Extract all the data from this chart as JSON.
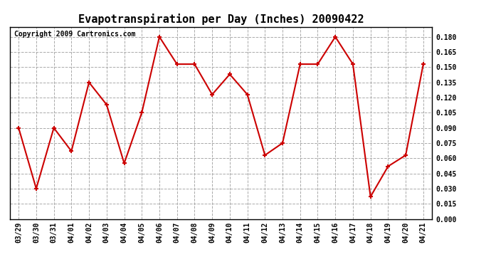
{
  "title": "Evapotranspiration per Day (Inches) 20090422",
  "copyright_text": "Copyright 2009 Cartronics.com",
  "dates": [
    "03/29",
    "03/30",
    "03/31",
    "04/01",
    "04/02",
    "04/03",
    "04/04",
    "04/05",
    "04/06",
    "04/07",
    "04/08",
    "04/09",
    "04/10",
    "04/11",
    "04/12",
    "04/13",
    "04/14",
    "04/15",
    "04/16",
    "04/17",
    "04/18",
    "04/19",
    "04/20",
    "04/21"
  ],
  "values": [
    0.09,
    0.03,
    0.09,
    0.067,
    0.135,
    0.113,
    0.055,
    0.105,
    0.18,
    0.153,
    0.153,
    0.123,
    0.143,
    0.123,
    0.063,
    0.075,
    0.153,
    0.153,
    0.18,
    0.153,
    0.022,
    0.052,
    0.063,
    0.153
  ],
  "line_color": "#cc0000",
  "marker": "+",
  "marker_size": 5,
  "marker_edge_width": 1.5,
  "line_width": 1.5,
  "ylim": [
    0.0,
    0.19
  ],
  "yticks": [
    0.0,
    0.015,
    0.03,
    0.045,
    0.06,
    0.075,
    0.09,
    0.105,
    0.12,
    0.135,
    0.15,
    0.165,
    0.18
  ],
  "grid_color": "#aaaaaa",
  "grid_linestyle": "--",
  "background_color": "#ffffff",
  "title_fontsize": 11,
  "tick_fontsize": 7,
  "copyright_fontsize": 7
}
